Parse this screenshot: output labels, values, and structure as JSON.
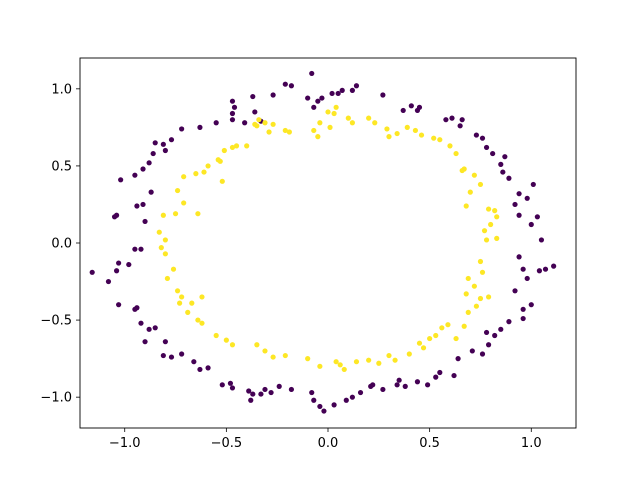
{
  "chart_data": {
    "type": "scatter",
    "title": "",
    "xlabel": "",
    "ylabel": "",
    "xlim": [
      -1.22,
      1.22
    ],
    "ylim": [
      -1.2,
      1.2
    ],
    "xticks": [
      -1.0,
      -0.5,
      0.0,
      0.5,
      1.0
    ],
    "xtick_labels": [
      "−1.0",
      "−0.5",
      "0.0",
      "0.5",
      "1.0"
    ],
    "yticks": [
      -1.0,
      -0.5,
      0.0,
      0.5,
      1.0
    ],
    "ytick_labels": [
      "−1.0",
      "−0.5",
      "0.0",
      "0.5",
      "1.0"
    ],
    "grid": false,
    "legend": "none",
    "series": [
      {
        "color": "#440154",
        "points": [
          [
            -0.08,
            1.1
          ],
          [
            -0.18,
            1.02
          ],
          [
            -0.21,
            1.03
          ],
          [
            -0.27,
            0.96
          ],
          [
            -0.37,
            0.95
          ],
          [
            -0.47,
            0.92
          ],
          [
            -0.46,
            0.88
          ],
          [
            -0.47,
            0.84
          ],
          [
            -0.36,
            0.85
          ],
          [
            -0.33,
            0.79
          ],
          [
            -0.41,
            0.78
          ],
          [
            -0.47,
            0.8
          ],
          [
            -0.55,
            0.78
          ],
          [
            -0.63,
            0.75
          ],
          [
            -0.72,
            0.74
          ],
          [
            -0.77,
            0.67
          ],
          [
            -0.81,
            0.64
          ],
          [
            -0.85,
            0.65
          ],
          [
            -0.8,
            0.6
          ],
          [
            -0.86,
            0.58
          ],
          [
            -0.88,
            0.52
          ],
          [
            -0.91,
            0.48
          ],
          [
            -1.02,
            0.41
          ],
          [
            -0.95,
            0.44
          ],
          [
            -0.87,
            0.33
          ],
          [
            -0.94,
            0.24
          ],
          [
            -0.91,
            0.25
          ],
          [
            -1.04,
            0.18
          ],
          [
            -1.05,
            0.17
          ],
          [
            -0.9,
            0.14
          ],
          [
            -0.95,
            -0.04
          ],
          [
            -0.92,
            -0.04
          ],
          [
            -0.98,
            -0.14
          ],
          [
            -1.03,
            -0.13
          ],
          [
            -1.04,
            -0.18
          ],
          [
            -1.16,
            -0.19
          ],
          [
            -1.08,
            -0.25
          ],
          [
            -1.03,
            -0.4
          ],
          [
            -0.94,
            -0.42
          ],
          [
            -0.95,
            -0.43
          ],
          [
            -0.92,
            -0.52
          ],
          [
            -0.88,
            -0.56
          ],
          [
            -0.85,
            -0.55
          ],
          [
            -0.9,
            -0.64
          ],
          [
            -0.8,
            -0.64
          ],
          [
            -0.81,
            -0.73
          ],
          [
            -0.77,
            -0.74
          ],
          [
            -0.72,
            -0.72
          ],
          [
            -0.66,
            -0.77
          ],
          [
            -0.63,
            -0.82
          ],
          [
            -0.59,
            -0.81
          ],
          [
            -0.52,
            -0.92
          ],
          [
            -0.48,
            -0.91
          ],
          [
            -0.47,
            -0.94
          ],
          [
            -0.39,
            -0.96
          ],
          [
            -0.37,
            -0.98
          ],
          [
            -0.38,
            -1.02
          ],
          [
            -0.33,
            -0.98
          ],
          [
            -0.31,
            -0.95
          ],
          [
            -0.28,
            -0.97
          ],
          [
            -0.24,
            -0.93
          ],
          [
            -0.18,
            -0.95
          ],
          [
            -0.08,
            -0.97
          ],
          [
            -0.07,
            -1.02
          ],
          [
            -0.04,
            -1.06
          ],
          [
            -0.02,
            -1.09
          ],
          [
            0.03,
            -1.05
          ],
          [
            0.09,
            -1.02
          ],
          [
            0.12,
            -1.0
          ],
          [
            0.16,
            -0.97
          ],
          [
            0.21,
            -0.93
          ],
          [
            0.22,
            -0.92
          ],
          [
            0.27,
            -0.95
          ],
          [
            0.34,
            -0.92
          ],
          [
            0.35,
            -0.89
          ],
          [
            0.38,
            -0.93
          ],
          [
            0.44,
            -0.9
          ],
          [
            0.49,
            -0.92
          ],
          [
            0.53,
            -0.87
          ],
          [
            0.55,
            -0.84
          ],
          [
            0.62,
            -0.86
          ],
          [
            0.64,
            -0.75
          ],
          [
            0.71,
            -0.7
          ],
          [
            0.76,
            -0.72
          ],
          [
            0.79,
            -0.66
          ],
          [
            0.82,
            -0.6
          ],
          [
            0.78,
            -0.58
          ],
          [
            0.85,
            -0.56
          ],
          [
            0.89,
            -0.51
          ],
          [
            0.96,
            -0.49
          ],
          [
            0.96,
            -0.43
          ],
          [
            1.0,
            -0.4
          ],
          [
            0.92,
            -0.31
          ],
          [
            0.98,
            -0.23
          ],
          [
            1.04,
            -0.18
          ],
          [
            1.07,
            -0.17
          ],
          [
            1.11,
            -0.15
          ],
          [
            0.96,
            -0.17
          ],
          [
            0.94,
            -0.09
          ],
          [
            1.05,
            0.02
          ],
          [
            1.0,
            0.12
          ],
          [
            1.03,
            0.17
          ],
          [
            0.94,
            0.18
          ],
          [
            0.92,
            0.25
          ],
          [
            0.98,
            0.29
          ],
          [
            1.01,
            0.38
          ],
          [
            0.94,
            0.32
          ],
          [
            0.89,
            0.42
          ],
          [
            0.86,
            0.46
          ],
          [
            0.85,
            0.51
          ],
          [
            0.87,
            0.56
          ],
          [
            0.81,
            0.58
          ],
          [
            0.78,
            0.62
          ],
          [
            0.76,
            0.68
          ],
          [
            0.73,
            0.7
          ],
          [
            0.65,
            0.76
          ],
          [
            0.66,
            0.8
          ],
          [
            0.61,
            0.81
          ],
          [
            0.58,
            0.8
          ],
          [
            0.44,
            0.86
          ],
          [
            0.45,
            0.88
          ],
          [
            0.41,
            0.89
          ],
          [
            0.37,
            0.86
          ],
          [
            0.27,
            0.96
          ],
          [
            0.14,
            1.02
          ],
          [
            0.12,
            0.99
          ],
          [
            0.07,
            0.99
          ],
          [
            0.02,
            0.97
          ],
          [
            0.05,
            0.97
          ],
          [
            -0.03,
            0.94
          ],
          [
            -0.05,
            0.92
          ],
          [
            -0.1,
            0.94
          ],
          [
            -0.07,
            0.88
          ]
        ]
      },
      {
        "color": "#fde725",
        "points": [
          [
            -0.34,
            0.8
          ],
          [
            -0.36,
            0.77
          ],
          [
            -0.31,
            0.78
          ],
          [
            -0.27,
            0.77
          ],
          [
            -0.29,
            0.72
          ],
          [
            -0.35,
            0.76
          ],
          [
            -0.21,
            0.73
          ],
          [
            -0.19,
            0.72
          ],
          [
            -0.07,
            0.73
          ],
          [
            -0.04,
            0.78
          ],
          [
            0.01,
            0.75
          ],
          [
            -0.05,
            0.69
          ],
          [
            0.0,
            0.85
          ],
          [
            0.03,
            0.84
          ],
          [
            0.04,
            0.88
          ],
          [
            0.1,
            0.81
          ],
          [
            0.12,
            0.78
          ],
          [
            0.2,
            0.81
          ],
          [
            0.23,
            0.78
          ],
          [
            0.29,
            0.74
          ],
          [
            0.3,
            0.69
          ],
          [
            0.34,
            0.71
          ],
          [
            0.39,
            0.75
          ],
          [
            0.43,
            0.73
          ],
          [
            0.46,
            0.7
          ],
          [
            0.52,
            0.68
          ],
          [
            0.55,
            0.67
          ],
          [
            0.6,
            0.63
          ],
          [
            0.63,
            0.58
          ],
          [
            0.67,
            0.48
          ],
          [
            0.66,
            0.47
          ],
          [
            0.72,
            0.44
          ],
          [
            0.75,
            0.38
          ],
          [
            0.7,
            0.33
          ],
          [
            0.68,
            0.24
          ],
          [
            0.79,
            0.22
          ],
          [
            0.82,
            0.21
          ],
          [
            0.83,
            0.17
          ],
          [
            0.8,
            0.12
          ],
          [
            0.77,
            0.08
          ],
          [
            0.83,
            0.03
          ],
          [
            0.78,
            0.02
          ],
          [
            0.75,
            -0.12
          ],
          [
            0.76,
            -0.19
          ],
          [
            0.69,
            -0.23
          ],
          [
            0.72,
            -0.28
          ],
          [
            0.68,
            -0.33
          ],
          [
            0.75,
            -0.36
          ],
          [
            0.79,
            -0.35
          ],
          [
            0.73,
            -0.41
          ],
          [
            0.69,
            -0.45
          ],
          [
            0.67,
            -0.54
          ],
          [
            0.63,
            -0.62
          ],
          [
            0.56,
            -0.55
          ],
          [
            0.59,
            -0.53
          ],
          [
            0.53,
            -0.6
          ],
          [
            0.5,
            -0.62
          ],
          [
            0.45,
            -0.65
          ],
          [
            0.47,
            -0.68
          ],
          [
            0.4,
            -0.72
          ],
          [
            0.33,
            -0.76
          ],
          [
            0.3,
            -0.73
          ],
          [
            0.25,
            -0.78
          ],
          [
            0.2,
            -0.76
          ],
          [
            0.14,
            -0.77
          ],
          [
            0.08,
            -0.82
          ],
          [
            0.06,
            -0.79
          ],
          [
            0.04,
            -0.77
          ],
          [
            -0.04,
            -0.8
          ],
          [
            -0.1,
            -0.75
          ],
          [
            -0.21,
            -0.73
          ],
          [
            -0.27,
            -0.74
          ],
          [
            -0.31,
            -0.7
          ],
          [
            -0.35,
            -0.66
          ],
          [
            -0.47,
            -0.66
          ],
          [
            -0.5,
            -0.63
          ],
          [
            -0.55,
            -0.6
          ],
          [
            -0.62,
            -0.52
          ],
          [
            -0.64,
            -0.5
          ],
          [
            -0.69,
            -0.45
          ],
          [
            -0.73,
            -0.39
          ],
          [
            -0.67,
            -0.39
          ],
          [
            -0.62,
            -0.35
          ],
          [
            -0.72,
            -0.35
          ],
          [
            -0.74,
            -0.31
          ],
          [
            -0.79,
            -0.23
          ],
          [
            -0.76,
            -0.17
          ],
          [
            -0.8,
            -0.07
          ],
          [
            -0.82,
            -0.03
          ],
          [
            -0.8,
            0.02
          ],
          [
            -0.83,
            0.07
          ],
          [
            -0.81,
            0.18
          ],
          [
            -0.64,
            0.19
          ],
          [
            -0.75,
            0.19
          ],
          [
            -0.71,
            0.26
          ],
          [
            -0.74,
            0.34
          ],
          [
            -0.71,
            0.43
          ],
          [
            -0.65,
            0.45
          ],
          [
            -0.61,
            0.46
          ],
          [
            -0.59,
            0.5
          ],
          [
            -0.53,
            0.53
          ],
          [
            -0.54,
            0.54
          ],
          [
            -0.51,
            0.6
          ],
          [
            -0.47,
            0.62
          ],
          [
            -0.45,
            0.63
          ],
          [
            -0.4,
            0.63
          ],
          [
            -0.52,
            0.4
          ]
        ]
      }
    ]
  }
}
